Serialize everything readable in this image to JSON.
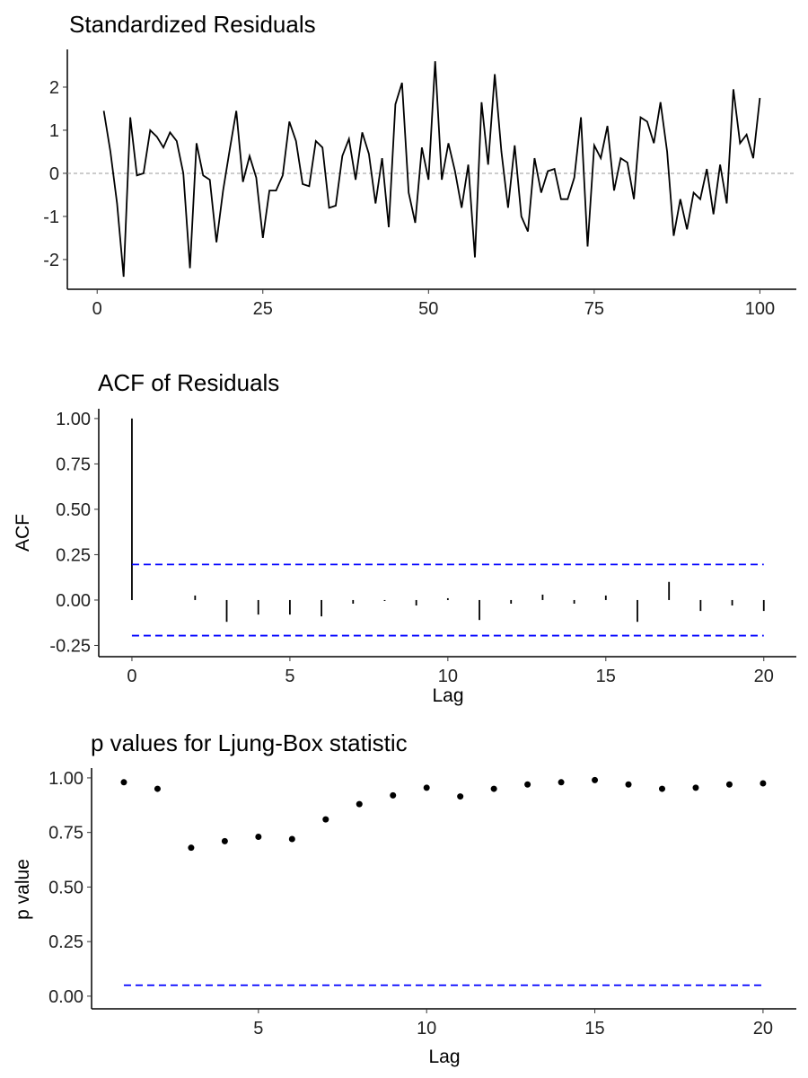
{
  "chart_data": [
    {
      "type": "line",
      "title": "Standardized Residuals",
      "xlabel": "",
      "ylabel": "",
      "xlim": [
        -4.5,
        105.5
      ],
      "ylim": [
        -2.69,
        2.875
      ],
      "xticks": [
        0,
        25,
        50,
        75,
        100
      ],
      "yticks": [
        -2,
        -1,
        0,
        1,
        2
      ],
      "reference_line": 0,
      "x_start": 1,
      "values": [
        1.45,
        0.5,
        -0.7,
        -2.4,
        1.3,
        -0.05,
        0,
        1.0,
        0.85,
        0.6,
        0.95,
        0.75,
        0,
        -2.2,
        0.7,
        -0.05,
        -0.15,
        -1.6,
        -0.4,
        0.55,
        1.45,
        -0.2,
        0.4,
        -0.1,
        -1.5,
        -0.4,
        -0.4,
        -0.05,
        1.2,
        0.75,
        -0.25,
        -0.3,
        0.75,
        0.6,
        -0.8,
        -0.75,
        0.4,
        0.8,
        -0.15,
        0.95,
        0.45,
        -0.7,
        0.35,
        -1.25,
        1.6,
        2.1,
        -0.45,
        -1.15,
        0.6,
        -0.15,
        2.6,
        -0.15,
        0.7,
        0.05,
        -0.8,
        0.2,
        -1.95,
        1.65,
        0.2,
        2.3,
        0.5,
        -0.8,
        0.65,
        -1.0,
        -1.35,
        0.35,
        -0.45,
        0.05,
        0.1,
        -0.6,
        -0.6,
        -0.1,
        1.3,
        -1.7,
        0.65,
        0.35,
        1.1,
        -0.4,
        0.35,
        0.25,
        -0.6,
        1.3,
        1.2,
        0.7,
        1.65,
        0.5,
        -1.45,
        -0.6,
        -1.3,
        -0.45,
        -0.6,
        0.1,
        -0.95,
        0.2,
        -0.7,
        1.95,
        0.7,
        0.9,
        0.35,
        1.75
      ]
    },
    {
      "type": "bar",
      "title": "ACF of Residuals",
      "xlabel": "Lag",
      "ylabel": "ACF",
      "xlim": [
        -1.05,
        21.03
      ],
      "ylim": [
        -0.312,
        1.054
      ],
      "xticks": [
        0,
        5,
        10,
        15,
        20
      ],
      "yticks": [
        "-0.25",
        "0.00",
        "0.25",
        "0.50",
        "0.75",
        "1.00"
      ],
      "confidence_bound": 0.196,
      "lags": [
        0,
        1,
        2,
        3,
        4,
        5,
        6,
        7,
        8,
        9,
        10,
        11,
        12,
        13,
        14,
        15,
        16,
        17,
        18,
        19,
        20
      ],
      "values": [
        1.0,
        0.0,
        0.025,
        -0.12,
        -0.08,
        -0.08,
        -0.09,
        -0.02,
        -0.005,
        -0.03,
        0.01,
        -0.11,
        -0.02,
        0.03,
        -0.02,
        0.025,
        -0.12,
        0.1,
        -0.06,
        -0.03,
        -0.06
      ],
      "bound_color": "#0000ff"
    },
    {
      "type": "scatter",
      "title": "p values for Ljung-Box statistic",
      "xlabel": "Lag",
      "ylabel": "p value",
      "xlim": [
        0.04,
        20.99
      ],
      "ylim": [
        -0.058,
        1.045
      ],
      "xticks": [
        5,
        10,
        15,
        20
      ],
      "yticks": [
        "0.00",
        "0.25",
        "0.50",
        "0.75",
        "1.00"
      ],
      "threshold": 0.05,
      "lags": [
        1,
        2,
        3,
        4,
        5,
        6,
        7,
        8,
        9,
        10,
        11,
        12,
        13,
        14,
        15,
        16,
        17,
        18,
        19,
        20
      ],
      "values": [
        0.98,
        0.95,
        0.68,
        0.71,
        0.73,
        0.72,
        0.81,
        0.88,
        0.92,
        0.955,
        0.915,
        0.95,
        0.97,
        0.98,
        0.99,
        0.97,
        0.95,
        0.955,
        0.97,
        0.975
      ],
      "threshold_color": "#0000ff"
    }
  ]
}
